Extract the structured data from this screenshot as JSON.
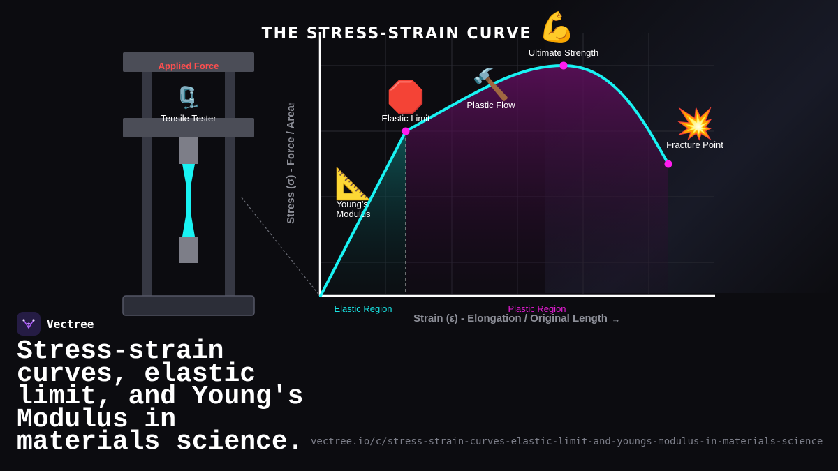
{
  "title": "THE STRESS-STRAIN CURVE",
  "title_emoji": "💪",
  "machine": {
    "applied_force": "Applied Force",
    "label": "Tensile Tester",
    "emoji": "🗜️"
  },
  "chart_data": {
    "type": "line",
    "title": "THE STRESS-STRAIN CURVE",
    "xlabel": "Strain (ε) - Elongation / Original Length",
    "ylabel": "Stress (σ) - Force / Area",
    "x_arrow": "→",
    "y_arrow": "↑",
    "grid": true,
    "regions": {
      "elastic": "Elastic Region",
      "plastic": "Plastic Region"
    },
    "annotations": {
      "youngs_modulus": "Young's Modulus",
      "youngs_emoji": "📐",
      "elastic_limit": "Elastic Limit",
      "elastic_emoji": "🛑",
      "plastic_flow": "Plastic Flow",
      "plastic_emoji": "🔨",
      "ultimate_strength": "Ultimate Strength",
      "fracture_point": "Fracture Point",
      "fracture_emoji": "💥"
    },
    "points": {
      "elastic_limit": [
        0.22,
        0.63
      ],
      "ultimate_strength": [
        0.61,
        0.88
      ],
      "fracture": [
        0.88,
        0.5
      ]
    },
    "colors": {
      "curve": "#19f3f3",
      "marker": "#ff1cf0",
      "elastic_label": "#19e3e3",
      "plastic_label": "#e61cd5"
    }
  },
  "brand": {
    "name": "Vectree"
  },
  "headline": "Stress-strain curves, elastic limit, and Young's Modulus in materials science.",
  "url": "vectree.io/c/stress-strain-curves-elastic-limit-and-youngs-modulus-in-materials-science"
}
